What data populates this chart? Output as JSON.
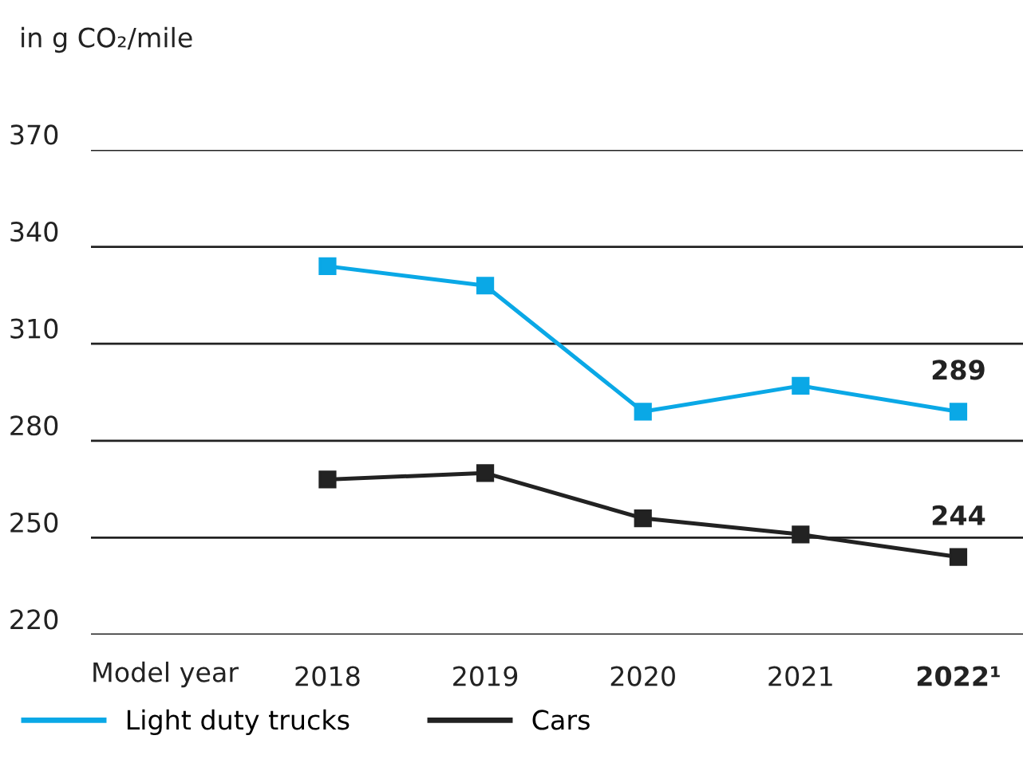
{
  "chart_data": {
    "type": "line",
    "ylabel": "in g CO₂/mile",
    "xlabel": "Model year",
    "categories": [
      "2018",
      "2019",
      "2020",
      "2021",
      "2022¹"
    ],
    "series": [
      {
        "name": "Light duty trucks",
        "color": "#0aa8e6",
        "values": [
          334,
          328,
          289,
          297,
          289
        ],
        "value_labels": [
          null,
          null,
          null,
          null,
          "289"
        ]
      },
      {
        "name": "Cars",
        "color": "#222222",
        "values": [
          268,
          270,
          256,
          251,
          244
        ],
        "value_labels": [
          null,
          null,
          null,
          null,
          "244"
        ]
      }
    ],
    "ylim": [
      220,
      370
    ],
    "yticks": [
      220,
      250,
      280,
      310,
      340,
      370
    ],
    "grid": "y",
    "legend": "bottom",
    "marker": "square",
    "line_style": "solid"
  }
}
